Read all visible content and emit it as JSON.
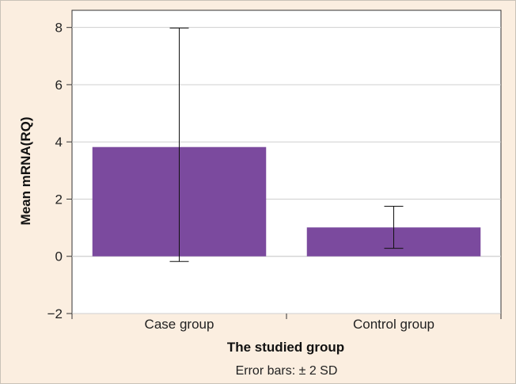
{
  "chart_data": {
    "type": "bar",
    "categories": [
      "Case group",
      "Control group"
    ],
    "values": [
      3.82,
      1.01
    ],
    "error_bars": {
      "label": "Error bars: ± 2 SD",
      "lower": [
        -0.18,
        0.28
      ],
      "upper": [
        7.98,
        1.75
      ]
    },
    "xlabel": "The studied group",
    "ylabel": "Mean mRNA(RQ)",
    "ylim": [
      -2,
      8.6
    ],
    "yticks": [
      -2,
      0,
      2,
      4,
      6,
      8
    ],
    "ytick_labels": [
      "−2",
      "0",
      "2",
      "4",
      "6",
      "8"
    ],
    "grid": true,
    "colors": {
      "bar": "#7b4a9e",
      "background": "#fbeee0",
      "plot_background": "#ffffff",
      "gridline": "#cfcfcf",
      "axis": "#333333"
    }
  }
}
